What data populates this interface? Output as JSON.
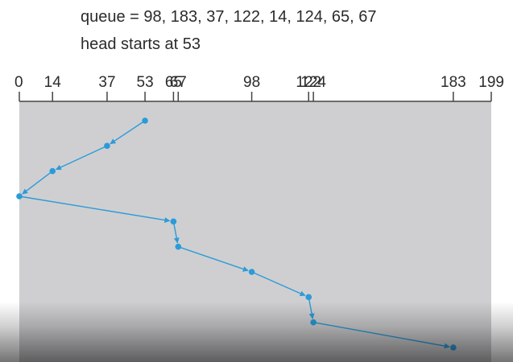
{
  "header": {
    "queue_text": "queue = 98, 183, 37, 122, 14, 124, 65, 67",
    "head_text": "head starts at 53"
  },
  "colors": {
    "panel": "#cfcfd1",
    "path": "#2b9bd9",
    "axis": "#444444"
  },
  "chart_data": {
    "type": "line",
    "xlim": [
      0,
      199
    ],
    "tick_labels": [
      0,
      14,
      37,
      53,
      65,
      67,
      98,
      122,
      124,
      183,
      199
    ],
    "sequence": [
      53,
      37,
      14,
      0,
      65,
      67,
      98,
      122,
      124,
      183
    ]
  }
}
